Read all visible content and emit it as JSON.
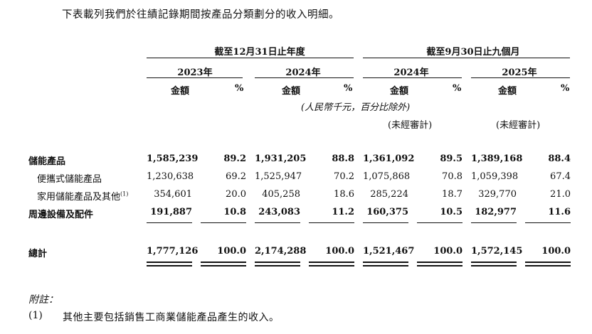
{
  "intro": "下表載列我們於往績記錄期間按產品分類劃分的收入明細。",
  "periods": [
    "截至12月31日止年度",
    "截至9月30日止九個月"
  ],
  "years": [
    "2023年",
    "2024年",
    "2024年",
    "2025年"
  ],
  "col_amount": "金額",
  "col_pct": "%",
  "units_note": "(人民幣千元，百分比除外)",
  "unaudited": "(未經審計)",
  "rows": [
    {
      "label": "儲能產品",
      "values": [
        "1,585,239",
        "89.2",
        "1,931,205",
        "88.8",
        "1,361,092",
        "89.5",
        "1,389,168",
        "88.4"
      ]
    },
    {
      "label": "便攜式儲能產品",
      "values": [
        "1,230,638",
        "69.2",
        "1,525,947",
        "70.2",
        "1,075,868",
        "70.8",
        "1,059,398",
        "67.4"
      ]
    },
    {
      "label": "家用儲能產品及其他",
      "sup": "(1)",
      "values": [
        "354,601",
        "20.0",
        "405,258",
        "18.6",
        "285,224",
        "18.7",
        "329,770",
        "21.0"
      ]
    },
    {
      "label": "周邊設備及配件",
      "values": [
        "191,887",
        "10.8",
        "243,083",
        "11.2",
        "160,375",
        "10.5",
        "182,977",
        "11.6"
      ]
    },
    {
      "label": "總計",
      "values": [
        "1,777,126",
        "100.0",
        "2,174,288",
        "100.0",
        "1,521,467",
        "100.0",
        "1,572,145",
        "100.0"
      ]
    }
  ],
  "footer": {
    "title": "附註：",
    "note_num": "(1)",
    "note_text": "其他主要包括銷售工商業儲能產品產生的收入。"
  }
}
